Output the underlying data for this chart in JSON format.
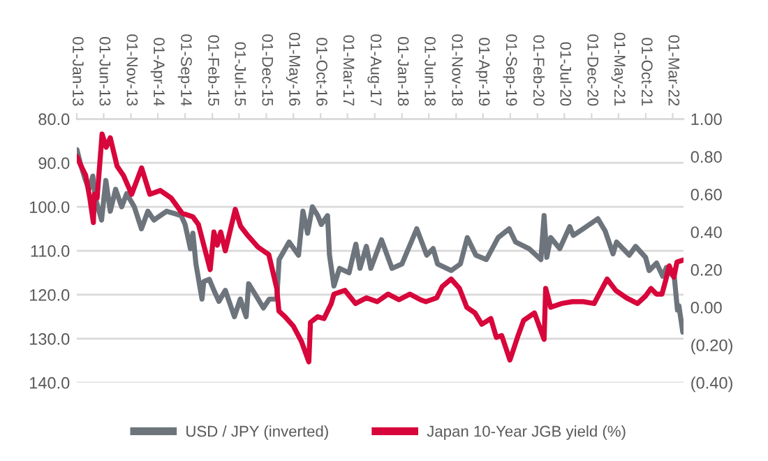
{
  "chart_data": {
    "type": "line",
    "xlim": [
      "2013-01-01",
      "2022-05-01"
    ],
    "xticks": [
      {
        "value": "2013-01-01",
        "label": "01-Jan-13"
      },
      {
        "value": "2013-06-01",
        "label": "01-Jun-13"
      },
      {
        "value": "2013-11-01",
        "label": "01-Nov-13"
      },
      {
        "value": "2014-04-01",
        "label": "01-Apr-14"
      },
      {
        "value": "2014-09-01",
        "label": "01-Sep-14"
      },
      {
        "value": "2015-02-01",
        "label": "01-Feb-15"
      },
      {
        "value": "2015-07-01",
        "label": "01-Jul-15"
      },
      {
        "value": "2015-12-01",
        "label": "01-Dec-15"
      },
      {
        "value": "2016-05-01",
        "label": "01-May-16"
      },
      {
        "value": "2016-10-01",
        "label": "01-Oct-16"
      },
      {
        "value": "2017-03-01",
        "label": "01-Mar-17"
      },
      {
        "value": "2017-08-01",
        "label": "01-Aug-17"
      },
      {
        "value": "2018-01-01",
        "label": "01-Jan-18"
      },
      {
        "value": "2018-06-01",
        "label": "01-Jun-18"
      },
      {
        "value": "2018-11-01",
        "label": "01-Nov-18"
      },
      {
        "value": "2019-04-01",
        "label": "01-Apr-19"
      },
      {
        "value": "2019-09-01",
        "label": "01-Sep-19"
      },
      {
        "value": "2020-02-01",
        "label": "01-Feb-20"
      },
      {
        "value": "2020-07-01",
        "label": "01-Jul-20"
      },
      {
        "value": "2020-12-01",
        "label": "01-Dec-20"
      },
      {
        "value": "2021-05-01",
        "label": "01-May-21"
      },
      {
        "value": "2021-10-01",
        "label": "01-Oct-21"
      },
      {
        "value": "2022-03-01",
        "label": "01-Mar-22"
      }
    ],
    "ylim": [
      140,
      80
    ],
    "yticks": [
      {
        "value": 80,
        "label": "80.0"
      },
      {
        "value": 90,
        "label": "90.0"
      },
      {
        "value": 100,
        "label": "100.0"
      },
      {
        "value": 110,
        "label": "110.0"
      },
      {
        "value": 120,
        "label": "120.0"
      },
      {
        "value": 130,
        "label": "130.0"
      },
      {
        "value": 140,
        "label": "140.0"
      }
    ],
    "y2lim": [
      -0.4,
      1.0
    ],
    "y2ticks": [
      {
        "value": 1.0,
        "label": "1.00"
      },
      {
        "value": 0.8,
        "label": "0.80"
      },
      {
        "value": 0.6,
        "label": "0.60"
      },
      {
        "value": 0.4,
        "label": "0.40"
      },
      {
        "value": 0.2,
        "label": "0.20"
      },
      {
        "value": 0.0,
        "label": "0.00"
      },
      {
        "value": -0.2,
        "label": "(0.20)"
      },
      {
        "value": -0.4,
        "label": "(0.40)"
      }
    ],
    "grid": "y",
    "legend": "bottom",
    "marker": "none",
    "line_style": "solid",
    "series": [
      {
        "name": "USD / JPY (inverted)",
        "color": "#6d747c",
        "axis": "y",
        "x": [
          "2013-01-02",
          "2013-01-20",
          "2013-02-15",
          "2013-03-10",
          "2013-04-01",
          "2013-04-15",
          "2013-05-20",
          "2013-06-13",
          "2013-07-08",
          "2013-08-07",
          "2013-09-10",
          "2013-10-08",
          "2013-11-20",
          "2013-12-30",
          "2014-02-04",
          "2014-03-10",
          "2014-05-20",
          "2014-07-01",
          "2014-08-10",
          "2014-09-01",
          "2014-10-01",
          "2014-10-15",
          "2014-11-01",
          "2014-12-05",
          "2014-12-15",
          "2015-01-15",
          "2015-02-10",
          "2015-03-10",
          "2015-04-15",
          "2015-06-05",
          "2015-07-08",
          "2015-08-10",
          "2015-08-24",
          "2015-10-01",
          "2015-11-15",
          "2015-12-18",
          "2016-01-29",
          "2016-02-11",
          "2016-04-07",
          "2016-05-30",
          "2016-06-24",
          "2016-07-20",
          "2016-08-16",
          "2016-09-15",
          "2016-10-05",
          "2016-11-09",
          "2016-11-20",
          "2016-12-15",
          "2017-01-15",
          "2017-03-10",
          "2017-04-17",
          "2017-05-10",
          "2017-06-15",
          "2017-07-10",
          "2017-09-08",
          "2017-11-06",
          "2018-01-01",
          "2018-03-25",
          "2018-05-20",
          "2018-06-25",
          "2018-07-20",
          "2018-10-04",
          "2018-11-25",
          "2019-01-03",
          "2019-02-20",
          "2019-04-20",
          "2019-06-25",
          "2019-08-26",
          "2019-10-01",
          "2019-12-15",
          "2020-02-20",
          "2020-03-09",
          "2020-03-24",
          "2020-04-15",
          "2020-06-05",
          "2020-07-31",
          "2020-08-20",
          "2020-10-15",
          "2021-01-05",
          "2021-02-15",
          "2021-03-31",
          "2021-04-20",
          "2021-06-30",
          "2021-08-05",
          "2021-09-30",
          "2021-10-20",
          "2021-12-01",
          "2022-01-04",
          "2022-01-25",
          "2022-02-25",
          "2022-03-08",
          "2022-03-28",
          "2022-04-05",
          "2022-04-27"
        ],
        "values": [
          87,
          90,
          93.5,
          96,
          93,
          98,
          103,
          94,
          101,
          96,
          100,
          97,
          100,
          105,
          101,
          103,
          101,
          101.5,
          102,
          104,
          109.5,
          106,
          113,
          121,
          117,
          116.5,
          119,
          121.5,
          119,
          125,
          121,
          125,
          117.5,
          120,
          123,
          121,
          121,
          112,
          108,
          111,
          101,
          106,
          100,
          102,
          104,
          102,
          111,
          118,
          114,
          115,
          108.5,
          114,
          109,
          114,
          107.5,
          114,
          113,
          105,
          111,
          109.5,
          113,
          114.5,
          113,
          107,
          111,
          112,
          107,
          105,
          108,
          109.5,
          112,
          102,
          111.5,
          107,
          109.5,
          104.5,
          106.5,
          105,
          102.7,
          105.5,
          110.7,
          108,
          111,
          109,
          111.5,
          114.5,
          112.8,
          115.8,
          113.8,
          115.5,
          115,
          123.5,
          122.5,
          128.5
        ]
      },
      {
        "name": "Japan 10-Year JGB yield (%)",
        "color": "#d7063b",
        "axis": "y2",
        "x": [
          "2013-01-02",
          "2013-01-25",
          "2013-02-20",
          "2013-03-15",
          "2013-04-04",
          "2013-04-10",
          "2013-04-25",
          "2013-05-23",
          "2013-06-15",
          "2013-07-08",
          "2013-08-15",
          "2013-09-20",
          "2013-11-05",
          "2013-12-31",
          "2014-02-15",
          "2014-04-15",
          "2014-06-15",
          "2014-08-15",
          "2014-10-15",
          "2014-11-15",
          "2014-12-15",
          "2015-01-20",
          "2015-02-10",
          "2015-03-01",
          "2015-03-20",
          "2015-04-15",
          "2015-06-10",
          "2015-07-10",
          "2015-08-20",
          "2015-10-15",
          "2015-12-15",
          "2016-01-29",
          "2016-02-10",
          "2016-03-15",
          "2016-05-01",
          "2016-06-15",
          "2016-07-27",
          "2016-08-05",
          "2016-09-15",
          "2016-10-20",
          "2016-11-30",
          "2016-12-15",
          "2017-02-15",
          "2017-04-15",
          "2017-06-15",
          "2017-08-15",
          "2017-10-15",
          "2017-12-15",
          "2018-02-15",
          "2018-04-15",
          "2018-05-15",
          "2018-07-15",
          "2018-08-15",
          "2018-10-04",
          "2018-11-20",
          "2018-12-31",
          "2019-02-15",
          "2019-03-25",
          "2019-05-15",
          "2019-06-15",
          "2019-07-15",
          "2019-08-30",
          "2019-09-10",
          "2019-10-15",
          "2019-11-15",
          "2020-01-15",
          "2020-03-09",
          "2020-03-18",
          "2020-04-15",
          "2020-06-15",
          "2020-08-15",
          "2020-10-15",
          "2020-12-15",
          "2021-02-26",
          "2021-04-15",
          "2021-06-15",
          "2021-08-15",
          "2021-09-30",
          "2021-10-30",
          "2021-11-30",
          "2021-12-31",
          "2022-01-20",
          "2022-02-10",
          "2022-03-08",
          "2022-03-25",
          "2022-04-27"
        ],
        "values": [
          0.8,
          0.75,
          0.7,
          0.58,
          0.45,
          0.6,
          0.58,
          0.92,
          0.85,
          0.9,
          0.75,
          0.7,
          0.6,
          0.74,
          0.6,
          0.62,
          0.58,
          0.5,
          0.48,
          0.44,
          0.33,
          0.2,
          0.4,
          0.33,
          0.4,
          0.3,
          0.52,
          0.43,
          0.38,
          0.32,
          0.28,
          0.1,
          -0.02,
          -0.05,
          -0.1,
          -0.18,
          -0.29,
          -0.08,
          -0.05,
          -0.06,
          0.02,
          0.07,
          0.09,
          0.02,
          0.05,
          0.03,
          0.07,
          0.04,
          0.07,
          0.04,
          0.03,
          0.05,
          0.11,
          0.15,
          0.1,
          0.0,
          -0.03,
          -0.09,
          -0.06,
          -0.16,
          -0.15,
          -0.28,
          -0.25,
          -0.15,
          -0.07,
          -0.03,
          -0.17,
          0.1,
          0.0,
          0.02,
          0.03,
          0.03,
          0.02,
          0.15,
          0.09,
          0.05,
          0.02,
          0.06,
          0.1,
          0.07,
          0.07,
          0.14,
          0.22,
          0.16,
          0.24,
          0.25
        ]
      }
    ]
  }
}
